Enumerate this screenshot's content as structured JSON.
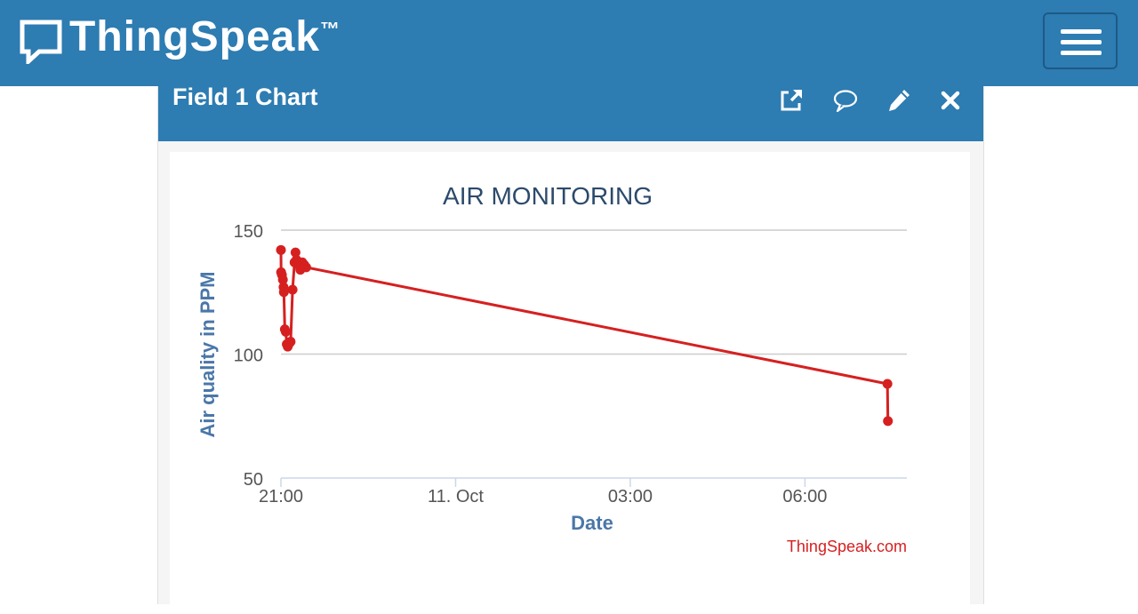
{
  "brand": {
    "name": "ThingSpeak",
    "tm": "™"
  },
  "header": {
    "menu_icon": "hamburger-menu-icon"
  },
  "panel": {
    "title": "Field 1 Chart",
    "actions": [
      {
        "name": "open-external-icon"
      },
      {
        "name": "comment-icon"
      },
      {
        "name": "edit-icon"
      },
      {
        "name": "close-icon"
      }
    ]
  },
  "colors": {
    "header_bg": "#2d7cb2",
    "series": "#d62020",
    "title": "#2c4a6b",
    "axis_label": "#4a77a8"
  },
  "chart_data": {
    "type": "line",
    "title": "AIR MONITORING",
    "xlabel": "Date",
    "ylabel": "Air quality in PPM",
    "credit": "ThingSpeak.com",
    "ylim": [
      50,
      150
    ],
    "yticks": [
      50,
      100,
      150
    ],
    "xlim": [
      "2023-10-10T21:00",
      "2023-10-11T07:45"
    ],
    "xticks": [
      {
        "label": "21:00",
        "x": "2023-10-10T21:00"
      },
      {
        "label": "11. Oct",
        "x": "2023-10-11T00:00"
      },
      {
        "label": "03:00",
        "x": "2023-10-11T03:00"
      },
      {
        "label": "06:00",
        "x": "2023-10-11T06:00"
      }
    ],
    "grid": true,
    "series": [
      {
        "points": [
          {
            "x": "2023-10-10T21:00:00",
            "y": 142
          },
          {
            "x": "2023-10-10T21:00:10",
            "y": 133
          },
          {
            "x": "2023-10-10T21:01:00",
            "y": 132
          },
          {
            "x": "2023-10-10T21:02:00",
            "y": 130
          },
          {
            "x": "2023-10-10T21:02:40",
            "y": 127
          },
          {
            "x": "2023-10-10T21:03:00",
            "y": 125
          },
          {
            "x": "2023-10-10T21:04:00",
            "y": 110
          },
          {
            "x": "2023-10-10T21:05:00",
            "y": 109
          },
          {
            "x": "2023-10-10T21:06:00",
            "y": 104
          },
          {
            "x": "2023-10-10T21:07:00",
            "y": 103
          },
          {
            "x": "2023-10-10T21:08:00",
            "y": 104
          },
          {
            "x": "2023-10-10T21:10:00",
            "y": 105
          },
          {
            "x": "2023-10-10T21:12:00",
            "y": 126
          },
          {
            "x": "2023-10-10T21:14:00",
            "y": 137
          },
          {
            "x": "2023-10-10T21:15:00",
            "y": 141
          },
          {
            "x": "2023-10-10T21:16:00",
            "y": 138
          },
          {
            "x": "2023-10-10T21:18:00",
            "y": 136
          },
          {
            "x": "2023-10-10T21:20:00",
            "y": 134
          },
          {
            "x": "2023-10-10T21:22:00",
            "y": 137
          },
          {
            "x": "2023-10-10T21:24:00",
            "y": 136
          },
          {
            "x": "2023-10-10T21:26:00",
            "y": 135
          },
          {
            "x": "2023-10-11T07:25:00",
            "y": 88
          },
          {
            "x": "2023-10-11T07:25:30",
            "y": 73
          }
        ]
      }
    ]
  }
}
